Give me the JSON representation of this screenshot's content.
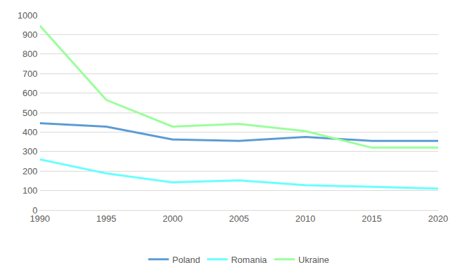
{
  "chart_data": {
    "type": "line",
    "categories": [
      "1990",
      "1995",
      "2000",
      "2005",
      "2010",
      "2015",
      "2020"
    ],
    "series": [
      {
        "name": "Poland",
        "color": "#5B9BD5",
        "values": [
          445,
          428,
          362,
          355,
          375,
          355,
          355
        ]
      },
      {
        "name": "Romania",
        "color": "#66FFFF",
        "values": [
          260,
          188,
          142,
          152,
          128,
          118,
          110
        ]
      },
      {
        "name": "Ukraine",
        "color": "#99FF99",
        "values": [
          945,
          565,
          428,
          442,
          405,
          320,
          320
        ]
      }
    ],
    "ylim": [
      0,
      1000
    ],
    "yticks": [
      0,
      100,
      200,
      300,
      400,
      500,
      600,
      700,
      800,
      900,
      1000
    ],
    "grid": true,
    "legend": "bottom"
  }
}
